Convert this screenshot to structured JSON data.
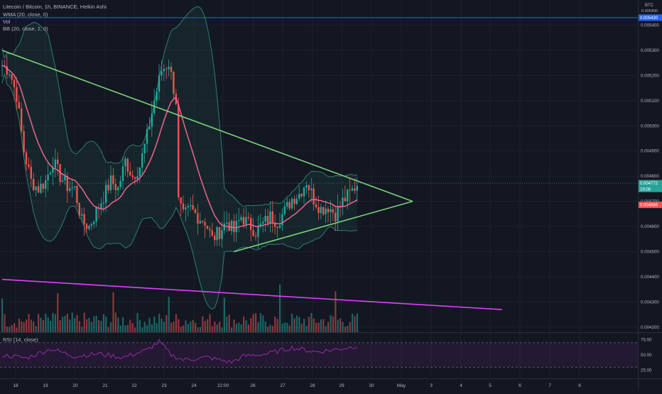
{
  "header": {
    "title": "Litecoin / Bitcoin, 1h, BINANCE, Heikin Ashi",
    "indicators": [
      "WMA (20, close, 0)",
      "Vol",
      "BB (20, close, 2, 0)"
    ]
  },
  "rsi_title": "RSI (14, close)",
  "price_scale": {
    "currency": "BTC",
    "labels": [
      "0.005400",
      "0.005300",
      "0.005200",
      "0.005100",
      "0.005000",
      "0.004900",
      "0.004800",
      "0.004700",
      "0.004600",
      "0.004500",
      "0.004400",
      "0.004300",
      "0.004200"
    ],
    "tag_top": "0.005430",
    "tag_current": "0.004772",
    "tag_countdown": "19:06",
    "tag_wma": "0.004686",
    "tiny_top": "0.005490"
  },
  "rsi_scale": {
    "labels": [
      "75.00",
      "50.00",
      "25.00"
    ]
  },
  "time_axis": {
    "labels": [
      "18",
      "19",
      "20",
      "21",
      "22",
      "23",
      "24",
      "22:00",
      "26",
      "27",
      "28",
      "29",
      "30",
      "May",
      "3",
      "4",
      "5",
      "6",
      "7",
      "8"
    ]
  },
  "colors": {
    "background": "#131722",
    "up": "#26a69a",
    "down": "#ef5350",
    "wma": "#f06292",
    "bb": "#2e7d6e",
    "trend_green": "#7bd07a",
    "trend_magenta": "#e040fb",
    "hline_blue": "#2962ff",
    "rsi": "#9c27b0",
    "grid": "#1e222d"
  },
  "chart_data": {
    "type": "candlestick",
    "title": "Litecoin / Bitcoin, 1h, BINANCE, Heikin Ashi",
    "ylim": [
      0.00418,
      0.0055
    ],
    "key_levels": {
      "horizontal_line": 0.00543
    },
    "close_path": [
      [
        0,
        0.00524
      ],
      [
        3,
        0.00522
      ],
      [
        6,
        0.00512
      ],
      [
        9,
        0.0049
      ],
      [
        12,
        0.00478
      ],
      [
        15,
        0.00475
      ],
      [
        18,
        0.00478
      ],
      [
        21,
        0.00486
      ],
      [
        24,
        0.0048
      ],
      [
        27,
        0.00476
      ],
      [
        30,
        0.00475
      ],
      [
        33,
        0.00462
      ],
      [
        36,
        0.0046
      ],
      [
        39,
        0.00466
      ],
      [
        42,
        0.00472
      ],
      [
        45,
        0.00478
      ],
      [
        48,
        0.00475
      ],
      [
        51,
        0.00486
      ],
      [
        54,
        0.0048
      ],
      [
        57,
        0.00484
      ],
      [
        60,
        0.00496
      ],
      [
        63,
        0.0051
      ],
      [
        66,
        0.00522
      ],
      [
        69,
        0.00525
      ],
      [
        72,
        0.0051
      ],
      [
        73,
        0.0047
      ],
      [
        75,
        0.00464
      ],
      [
        78,
        0.00467
      ],
      [
        81,
        0.00464
      ],
      [
        84,
        0.00462
      ],
      [
        87,
        0.00455
      ],
      [
        90,
        0.00458
      ],
      [
        93,
        0.00462
      ],
      [
        96,
        0.00458
      ],
      [
        99,
        0.00464
      ],
      [
        102,
        0.00461
      ],
      [
        105,
        0.00458
      ],
      [
        108,
        0.00461
      ],
      [
        111,
        0.00464
      ],
      [
        114,
        0.00462
      ],
      [
        117,
        0.00466
      ],
      [
        120,
        0.00471
      ],
      [
        123,
        0.00473
      ],
      [
        126,
        0.00478
      ],
      [
        129,
        0.00471
      ],
      [
        132,
        0.00467
      ],
      [
        135,
        0.00468
      ],
      [
        138,
        0.00465
      ],
      [
        141,
        0.0047
      ],
      [
        144,
        0.00473
      ],
      [
        147,
        0.00477
      ]
    ],
    "trendlines": [
      {
        "name": "",
        "from": [
          0,
          0.0053
        ],
        "to": [
          170,
          0.0047
        ],
        "color": "green"
      },
      {
        "name": "",
        "from": [
          96,
          0.0045
        ],
        "to": [
          170,
          0.0047
        ],
        "color": "green"
      },
      {
        "name": "",
        "from": [
          0,
          0.00439
        ],
        "to": [
          207,
          0.00427
        ],
        "color": "magenta"
      }
    ],
    "rsi_path": [
      [
        0,
        50
      ],
      [
        10,
        45
      ],
      [
        20,
        60
      ],
      [
        30,
        48
      ],
      [
        40,
        52
      ],
      [
        50,
        46
      ],
      [
        60,
        58
      ],
      [
        65,
        72
      ],
      [
        70,
        50
      ],
      [
        75,
        42
      ],
      [
        85,
        46
      ],
      [
        95,
        38
      ],
      [
        100,
        48
      ],
      [
        110,
        52
      ],
      [
        120,
        62
      ],
      [
        130,
        55
      ],
      [
        140,
        60
      ],
      [
        147,
        65
      ]
    ],
    "rsi_levels": [
      70,
      30
    ]
  }
}
